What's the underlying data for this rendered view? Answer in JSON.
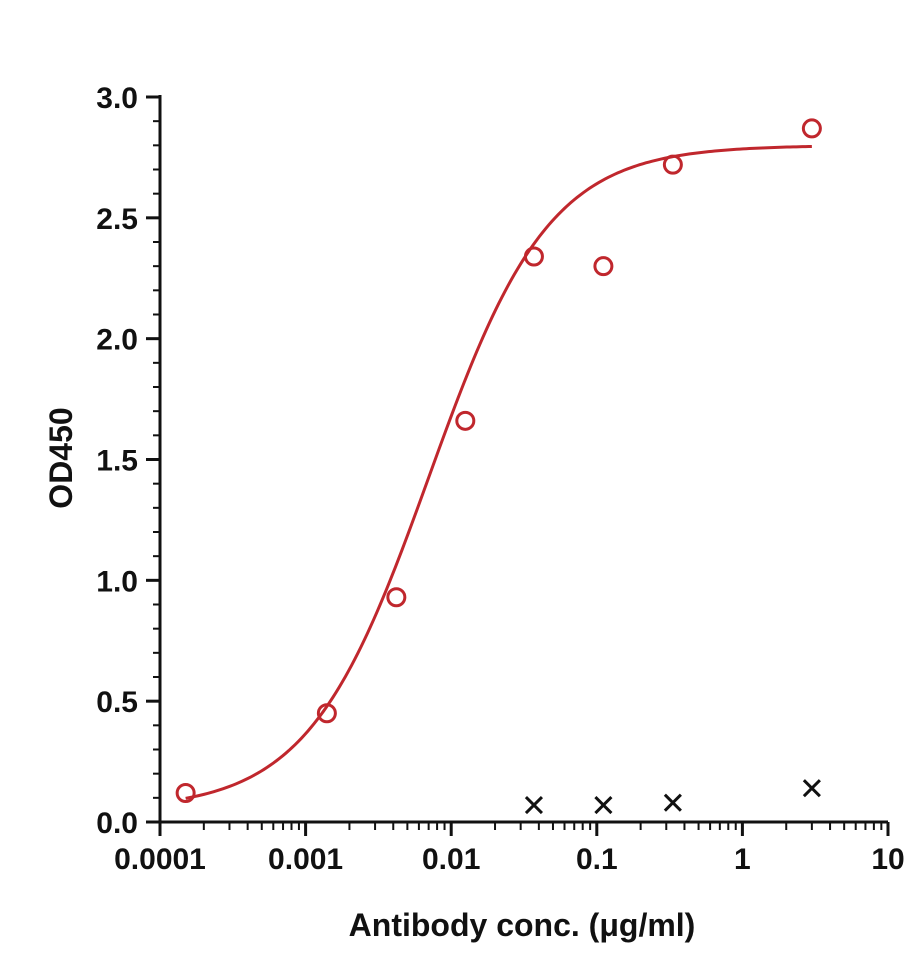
{
  "chart_data": {
    "type": "scatter",
    "title": "",
    "xlabel": "Antibody conc. (μg/ml)",
    "ylabel": "OD450",
    "xscale": "log",
    "xlim": [
      0.0001,
      10
    ],
    "ylim": [
      0,
      3.0
    ],
    "x_ticks": [
      {
        "value": 0.0001,
        "label": "0.0001"
      },
      {
        "value": 0.001,
        "label": "0.001"
      },
      {
        "value": 0.01,
        "label": "0.01"
      },
      {
        "value": 0.1,
        "label": "0.1"
      },
      {
        "value": 1,
        "label": "1"
      },
      {
        "value": 10,
        "label": "10"
      }
    ],
    "y_ticks": [
      {
        "value": 0,
        "label": "0.0"
      },
      {
        "value": 0.5,
        "label": "0.5"
      },
      {
        "value": 1.0,
        "label": "1.0"
      },
      {
        "value": 1.5,
        "label": "1.5"
      },
      {
        "value": 2.0,
        "label": "2.0"
      },
      {
        "value": 2.5,
        "label": "2.5"
      },
      {
        "value": 3.0,
        "label": "3.0"
      }
    ],
    "grid": false,
    "legend": "none",
    "series": [
      {
        "marker": "circle",
        "color": "#c0272d",
        "points": [
          {
            "x": 0.00015,
            "y": 0.12
          },
          {
            "x": 0.0014,
            "y": 0.45
          },
          {
            "x": 0.0042,
            "y": 0.93
          },
          {
            "x": 0.0125,
            "y": 1.66
          },
          {
            "x": 0.037,
            "y": 2.34
          },
          {
            "x": 0.111,
            "y": 2.3
          },
          {
            "x": 0.333,
            "y": 2.72
          },
          {
            "x": 3.0,
            "y": 2.87
          }
        ],
        "fit": {
          "type": "4PL",
          "bottom": 0.05,
          "top": 2.8,
          "ec50": 0.007,
          "hill": 1.05,
          "x_range": [
            0.00015,
            3.0
          ]
        }
      },
      {
        "marker": "x",
        "color": "#111111",
        "points": [
          {
            "x": 0.037,
            "y": 0.07
          },
          {
            "x": 0.111,
            "y": 0.07
          },
          {
            "x": 0.333,
            "y": 0.08
          },
          {
            "x": 3.0,
            "y": 0.14
          }
        ]
      }
    ]
  }
}
